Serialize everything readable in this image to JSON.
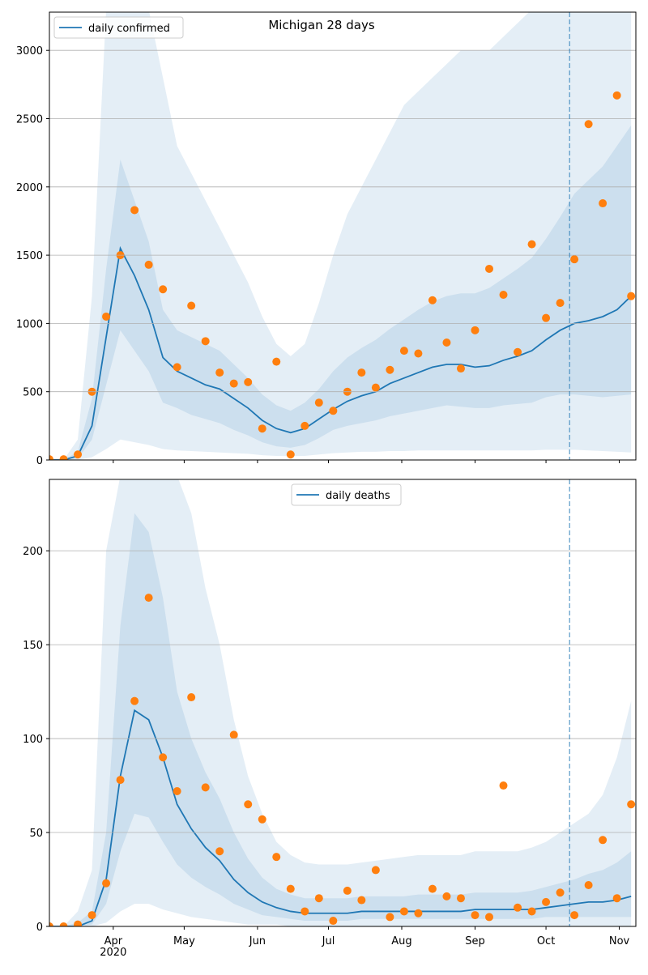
{
  "chart_data": [
    {
      "type": "line",
      "title": "Michigan 28 days",
      "legend": "upper left",
      "grid": true,
      "x": [
        0,
        6,
        12,
        18,
        24,
        30,
        36,
        42,
        48,
        54,
        60,
        66,
        72,
        78,
        84,
        90,
        96,
        102,
        108,
        114,
        120,
        126,
        132,
        138,
        144,
        150,
        156,
        162,
        168,
        174,
        180,
        186,
        192,
        198,
        204,
        210,
        216,
        222,
        228,
        234,
        240,
        246
      ],
      "xlim": [
        0,
        248
      ],
      "xticks": [
        27,
        57,
        88,
        118,
        149,
        180,
        210,
        241
      ],
      "ylim": [
        0,
        3280
      ],
      "yticks": [
        0,
        500,
        1000,
        1500,
        2000,
        2500,
        3000
      ],
      "vline": 220,
      "series": [
        {
          "name": "daily confirmed",
          "color": "#1f77b4",
          "values": [
            0,
            0,
            30,
            250,
            900,
            1550,
            1350,
            1100,
            750,
            650,
            600,
            550,
            520,
            450,
            380,
            290,
            230,
            200,
            230,
            300,
            370,
            430,
            470,
            500,
            560,
            600,
            640,
            680,
            700,
            700,
            680,
            690,
            730,
            760,
            800,
            880,
            950,
            1000,
            1020,
            1050,
            1100,
            1200
          ]
        }
      ],
      "points": {
        "color": "#ff7f0e",
        "values": [
          5,
          5,
          40,
          500,
          1050,
          1500,
          1830,
          1430,
          1250,
          680,
          1130,
          870,
          640,
          560,
          570,
          230,
          720,
          40,
          250,
          420,
          360,
          500,
          640,
          530,
          660,
          800,
          780,
          1170,
          860,
          670,
          950,
          1400,
          1210,
          790,
          1580,
          1040,
          1150,
          1470,
          2460,
          1880,
          2670,
          1200
        ]
      },
      "bands": [
        {
          "color": "#1f77b4",
          "lower": [
            0,
            0,
            0,
            20,
            80,
            150,
            130,
            110,
            80,
            70,
            65,
            60,
            55,
            50,
            45,
            35,
            30,
            28,
            30,
            40,
            50,
            55,
            60,
            60,
            65,
            65,
            70,
            70,
            70,
            70,
            70,
            70,
            70,
            70,
            70,
            75,
            75,
            75,
            70,
            65,
            60,
            55
          ],
          "upper": [
            0,
            0,
            150,
            1200,
            3300,
            3300,
            3300,
            3300,
            2800,
            2300,
            2100,
            1900,
            1700,
            1500,
            1300,
            1050,
            850,
            760,
            850,
            1150,
            1500,
            1800,
            2000,
            2200,
            2400,
            2600,
            2700,
            2800,
            2900,
            3000,
            3000,
            3000,
            3100,
            3200,
            3300,
            3300,
            3300,
            3300,
            3300,
            3300,
            3300,
            3300
          ]
        },
        {
          "color": "#1f77b4",
          "lower": [
            0,
            0,
            10,
            150,
            550,
            950,
            800,
            650,
            420,
            380,
            330,
            300,
            270,
            220,
            180,
            130,
            100,
            90,
            110,
            160,
            220,
            250,
            270,
            290,
            320,
            340,
            360,
            380,
            400,
            390,
            380,
            380,
            400,
            410,
            420,
            460,
            480,
            480,
            470,
            460,
            470,
            480
          ],
          "upper": [
            0,
            0,
            60,
            450,
            1400,
            2200,
            1900,
            1600,
            1100,
            950,
            900,
            850,
            800,
            700,
            600,
            480,
            400,
            360,
            420,
            520,
            650,
            750,
            820,
            880,
            960,
            1030,
            1100,
            1160,
            1200,
            1220,
            1220,
            1260,
            1330,
            1400,
            1480,
            1620,
            1780,
            1950,
            2050,
            2150,
            2300,
            2450
          ]
        }
      ]
    },
    {
      "type": "line",
      "legend": "upper center",
      "grid": true,
      "x": [
        0,
        6,
        12,
        18,
        24,
        30,
        36,
        42,
        48,
        54,
        60,
        66,
        72,
        78,
        84,
        90,
        96,
        102,
        108,
        114,
        120,
        126,
        132,
        138,
        144,
        150,
        156,
        162,
        168,
        174,
        180,
        186,
        192,
        198,
        204,
        210,
        216,
        222,
        228,
        234,
        240,
        246
      ],
      "xlim": [
        0,
        248
      ],
      "xticks": [
        {
          "value": 27,
          "label": "Apr\n2020"
        },
        {
          "value": 57,
          "label": "May"
        },
        {
          "value": 88,
          "label": "Jun"
        },
        {
          "value": 118,
          "label": "Jul"
        },
        {
          "value": 149,
          "label": "Aug"
        },
        {
          "value": 180,
          "label": "Sep"
        },
        {
          "value": 210,
          "label": "Oct"
        },
        {
          "value": 241,
          "label": "Nov"
        }
      ],
      "ylim": [
        0,
        238
      ],
      "yticks": [
        0,
        50,
        100,
        150,
        200
      ],
      "vline": 220,
      "series": [
        {
          "name": "daily deaths",
          "color": "#1f77b4",
          "values": [
            0,
            0,
            0,
            3,
            25,
            80,
            115,
            110,
            90,
            65,
            52,
            42,
            35,
            25,
            18,
            13,
            10,
            8,
            7,
            7,
            7,
            7,
            8,
            8,
            8,
            8,
            8,
            8,
            8,
            8,
            9,
            9,
            9,
            9,
            9,
            10,
            11,
            12,
            13,
            13,
            14,
            16
          ]
        }
      ],
      "points": {
        "color": "#ff7f0e",
        "values": [
          0,
          0,
          1,
          6,
          23,
          78,
          120,
          175,
          90,
          72,
          122,
          74,
          40,
          102,
          65,
          57,
          37,
          20,
          8,
          15,
          3,
          19,
          14,
          30,
          5,
          8,
          7,
          20,
          16,
          15,
          6,
          5,
          75,
          10,
          8,
          13,
          18,
          6,
          22,
          46,
          15,
          65
        ]
      },
      "bands": [
        {
          "color": "#1f77b4",
          "lower": [
            0,
            0,
            0,
            0,
            2,
            8,
            12,
            12,
            9,
            7,
            5,
            4,
            3,
            2,
            1,
            1,
            1,
            0,
            0,
            0,
            0,
            0,
            0,
            0,
            0,
            0,
            0,
            0,
            0,
            0,
            0,
            0,
            0,
            0,
            0,
            0,
            0,
            0,
            0,
            0,
            0,
            0
          ],
          "upper": [
            0,
            0,
            8,
            30,
            200,
            240,
            240,
            240,
            240,
            240,
            220,
            180,
            150,
            110,
            80,
            60,
            45,
            38,
            34,
            33,
            33,
            33,
            34,
            35,
            36,
            37,
            38,
            38,
            38,
            38,
            40,
            40,
            40,
            40,
            42,
            45,
            50,
            55,
            60,
            70,
            90,
            120
          ]
        },
        {
          "color": "#1f77b4",
          "lower": [
            0,
            0,
            0,
            1,
            12,
            40,
            60,
            58,
            45,
            33,
            26,
            21,
            17,
            12,
            9,
            6,
            5,
            4,
            3,
            3,
            3,
            3,
            4,
            4,
            4,
            4,
            4,
            4,
            4,
            4,
            4,
            4,
            4,
            4,
            4,
            5,
            5,
            5,
            5,
            5,
            5,
            5
          ],
          "upper": [
            0,
            0,
            2,
            8,
            50,
            160,
            220,
            210,
            175,
            125,
            100,
            82,
            68,
            50,
            36,
            26,
            20,
            17,
            15,
            15,
            15,
            15,
            16,
            16,
            16,
            16,
            17,
            17,
            17,
            17,
            18,
            18,
            18,
            18,
            19,
            21,
            23,
            25,
            28,
            30,
            34,
            40
          ]
        }
      ]
    }
  ]
}
